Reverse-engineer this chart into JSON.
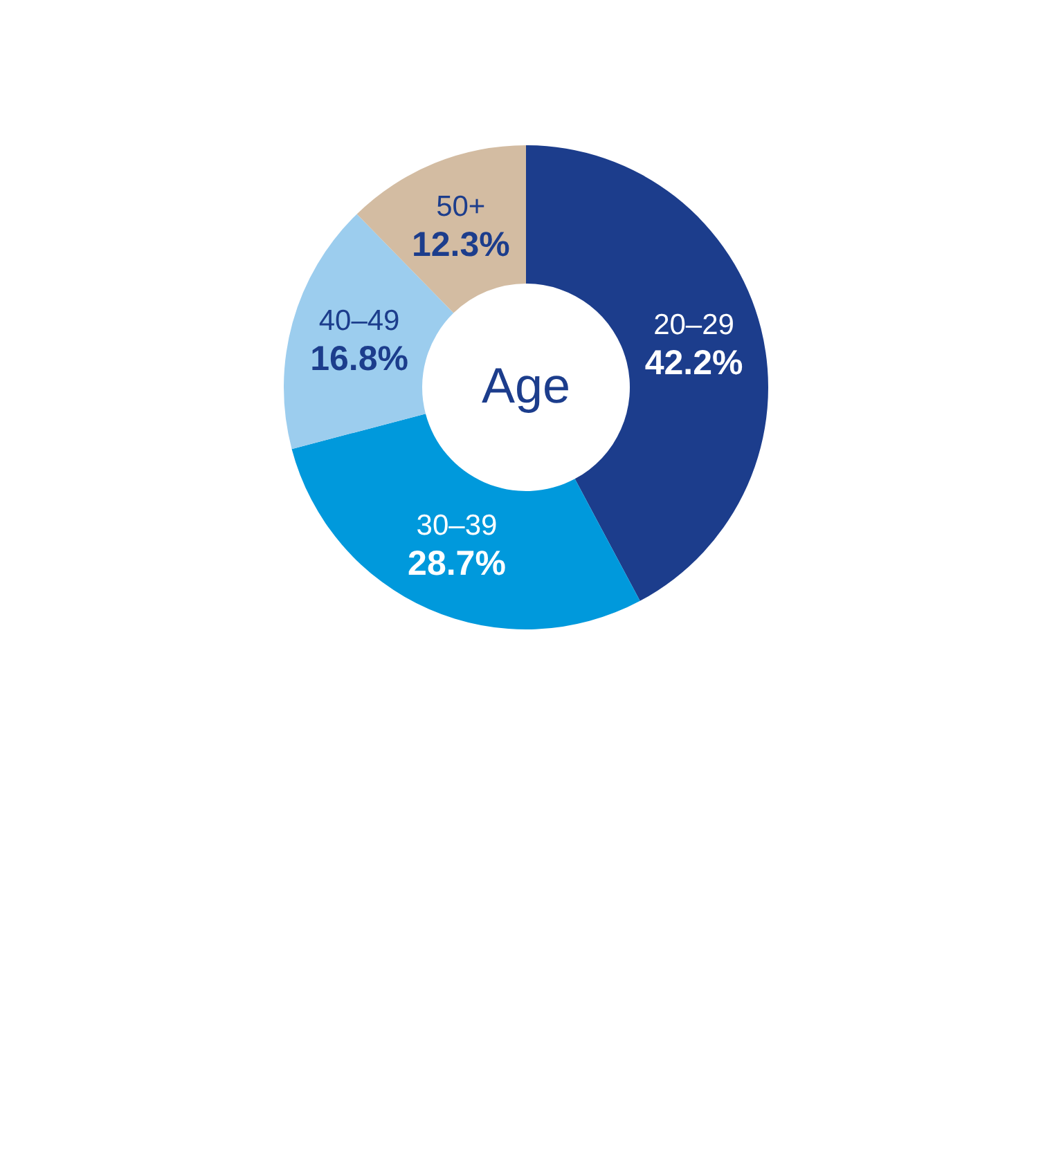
{
  "chart_data": {
    "type": "donut",
    "categories": [
      "20–29",
      "30–39",
      "40–49",
      "50+"
    ],
    "values": [
      42.2,
      28.7,
      16.8,
      12.3
    ],
    "value_labels": [
      "42.2%",
      "28.7%",
      "16.8%",
      "12.3%"
    ],
    "colors": [
      "#1c3d8c",
      "#0099dc",
      "#9ccdee",
      "#d3bca2"
    ],
    "annotations": [
      "Age"
    ]
  }
}
